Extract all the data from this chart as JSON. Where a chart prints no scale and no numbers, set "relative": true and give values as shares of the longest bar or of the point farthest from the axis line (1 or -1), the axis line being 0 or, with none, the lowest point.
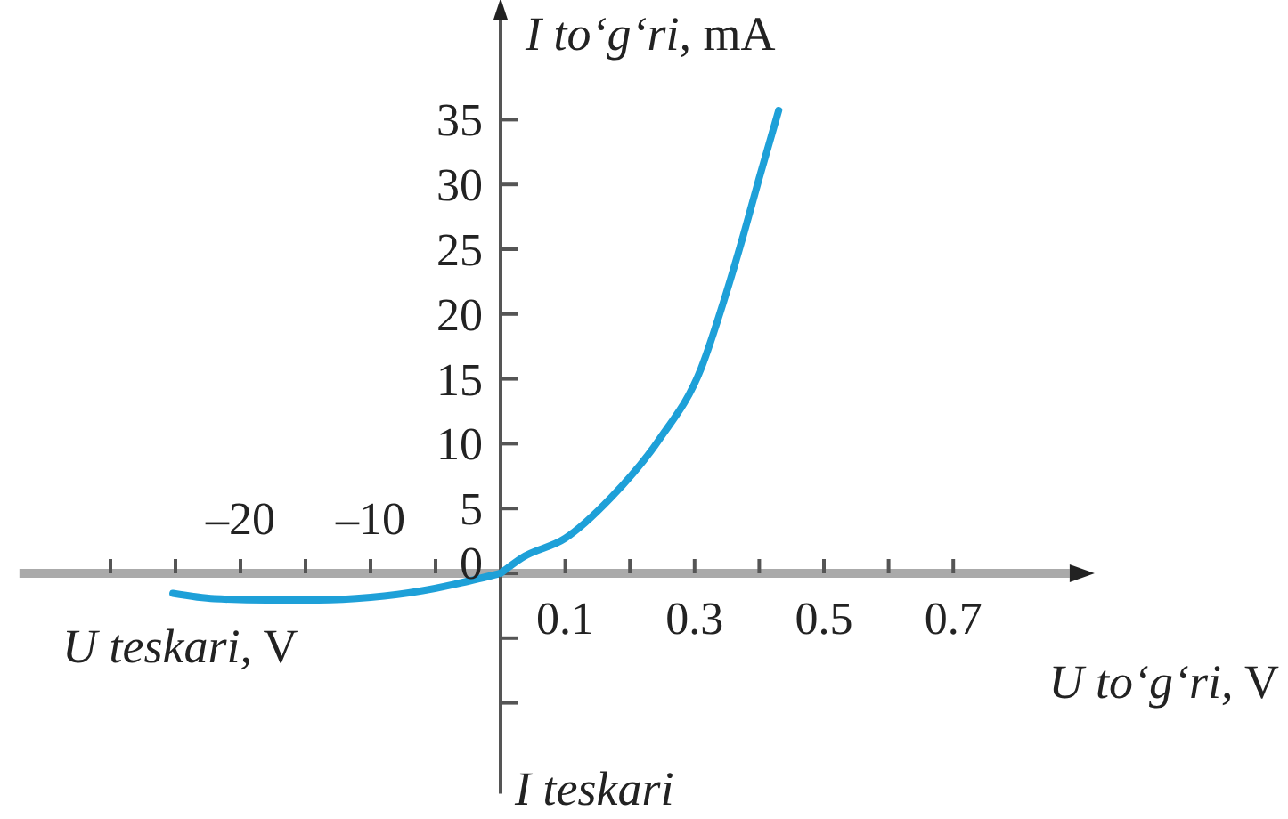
{
  "chart_data": [
    {
      "type": "line",
      "relative": true,
      "xlabel": "U teskari, V",
      "ylabel": "I teskari",
      "xlim": [
        -37,
        0
      ],
      "xticks": [
        {
          "value": -30,
          "label": null
        },
        {
          "value": -25,
          "label": null
        },
        {
          "value": -20,
          "label": "–20"
        },
        {
          "value": -15,
          "label": null
        },
        {
          "value": -10,
          "label": "–10"
        },
        {
          "value": -5,
          "label": null
        }
      ],
      "x": [
        -25.2,
        -22,
        -18,
        -14,
        -10,
        -6,
        -3,
        0
      ],
      "series": [
        {
          "color": "#1ea0d8",
          "values": [
            -0.75,
            -0.95,
            -1,
            -1,
            -0.9,
            -0.65,
            -0.35,
            0
          ]
        }
      ]
    },
    {
      "type": "line",
      "xlabel": "U to‘g‘ri, V",
      "ylabel": "I to‘g‘ri, mA",
      "xlim": [
        0,
        0.88
      ],
      "ylim": [
        -17,
        43
      ],
      "xticks": [
        0.1,
        {
          "value": 0.2,
          "label": null
        },
        0.3,
        {
          "value": 0.4,
          "label": null
        },
        0.5,
        {
          "value": 0.6,
          "label": null
        },
        0.7
      ],
      "yticks": [
        {
          "value": -10,
          "label": null
        },
        {
          "value": -5,
          "label": null
        },
        0,
        5,
        10,
        15,
        20,
        25,
        30,
        35
      ],
      "x": [
        0,
        0.033,
        0.1,
        0.17,
        0.245,
        0.31,
        0.347,
        0.375,
        0.4,
        0.43
      ],
      "series": [
        {
          "color": "#1ea0d8",
          "values": [
            0,
            1.2,
            2.7,
            5.8,
            10.3,
            15.8,
            21.3,
            26,
            30.5,
            35.7
          ]
        }
      ]
    }
  ]
}
